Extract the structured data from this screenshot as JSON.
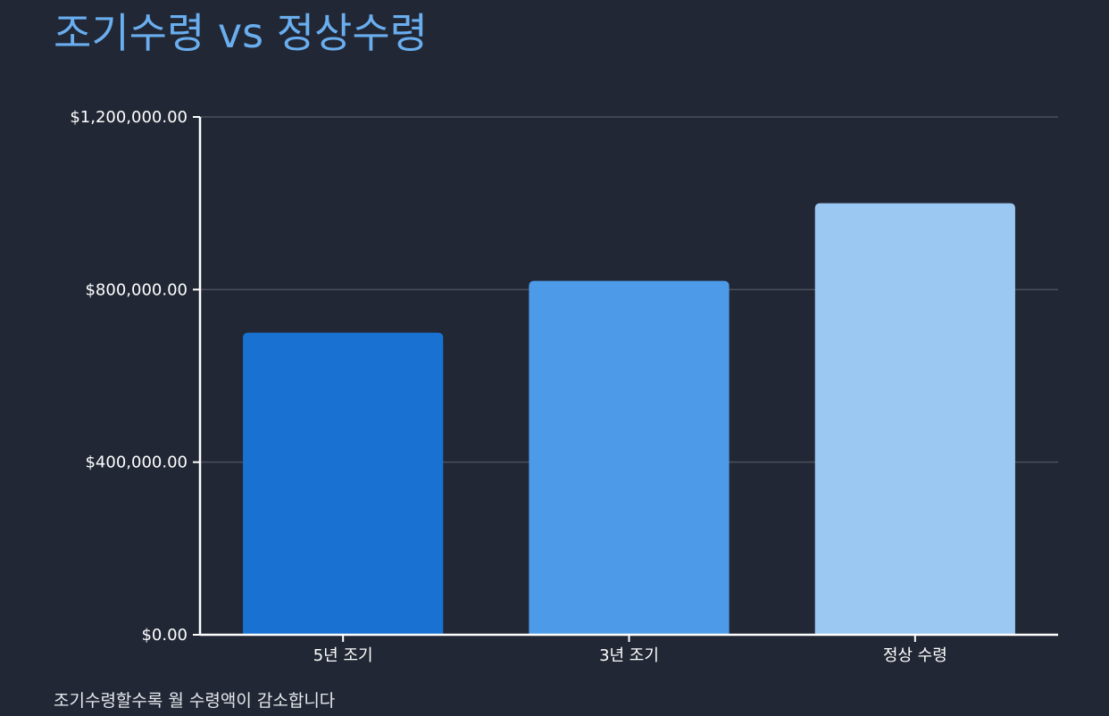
{
  "title": "조기수령 vs 정상수령",
  "note": "조기수령할수록 월 수령액이 감소합니다",
  "colors": {
    "background": "#212734",
    "title": "#6aaeef",
    "axis": "#ffffff",
    "grid": "#4a505c",
    "bars": [
      "#1971d2",
      "#4d9be8",
      "#9bc7f3"
    ]
  },
  "chart_data": {
    "type": "bar",
    "categories": [
      "5년 조기",
      "3년 조기",
      "정상 수령"
    ],
    "values": [
      700000,
      820000,
      1000000
    ],
    "ylim": [
      0,
      1200000
    ],
    "yticks": [
      0,
      400000,
      800000,
      1200000
    ],
    "ytick_labels": [
      "$0.00",
      "$400,000.00",
      "$800,000.00",
      "$1,200,000.00"
    ],
    "grid": true,
    "legend": "none"
  }
}
